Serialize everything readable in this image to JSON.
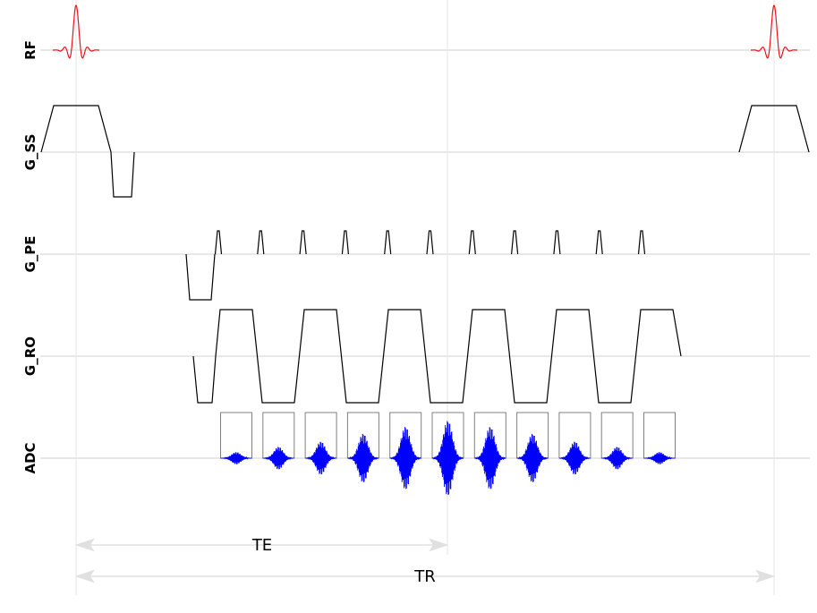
{
  "channels": [
    {
      "id": "rf",
      "label": "RF"
    },
    {
      "id": "gss",
      "label": "G_SS"
    },
    {
      "id": "gpe",
      "label": "G_PE"
    },
    {
      "id": "gro",
      "label": "G_RO"
    },
    {
      "id": "adc",
      "label": "ADC"
    }
  ],
  "measurements": {
    "te": "TE",
    "tr": "TR"
  },
  "colors": {
    "rf": "#e8141c",
    "gradient": "#000000",
    "signal": "#0000ff",
    "adc_window": "#808080",
    "baseline": "#d0d0d0",
    "guide": "#e6e6e6"
  },
  "echo_count": 11
}
